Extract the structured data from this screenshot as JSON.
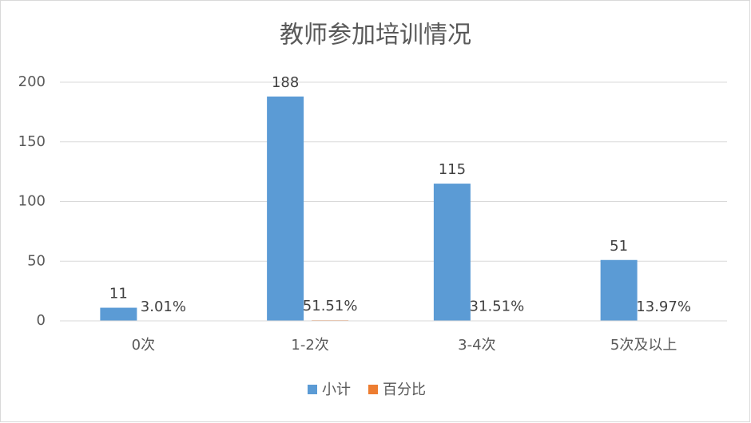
{
  "chart_data": {
    "type": "bar",
    "title": "教师参加培训情况",
    "categories": [
      "0次",
      "1-2次",
      "3-4次",
      "5次及以上"
    ],
    "series": [
      {
        "name": "小计",
        "color": "#5b9bd5",
        "values": [
          11,
          188,
          115,
          51
        ]
      },
      {
        "name": "百分比",
        "color": "#ed7d31",
        "values": [
          0.0301,
          0.5151,
          0.3151,
          0.1397
        ],
        "value_labels": [
          "3.01%",
          "51.51%",
          "31.51%",
          "13.97%"
        ]
      }
    ],
    "ylim": [
      0,
      200
    ],
    "yticks": [
      0,
      50,
      100,
      150,
      200
    ],
    "grid": true,
    "legend": "bottom"
  }
}
